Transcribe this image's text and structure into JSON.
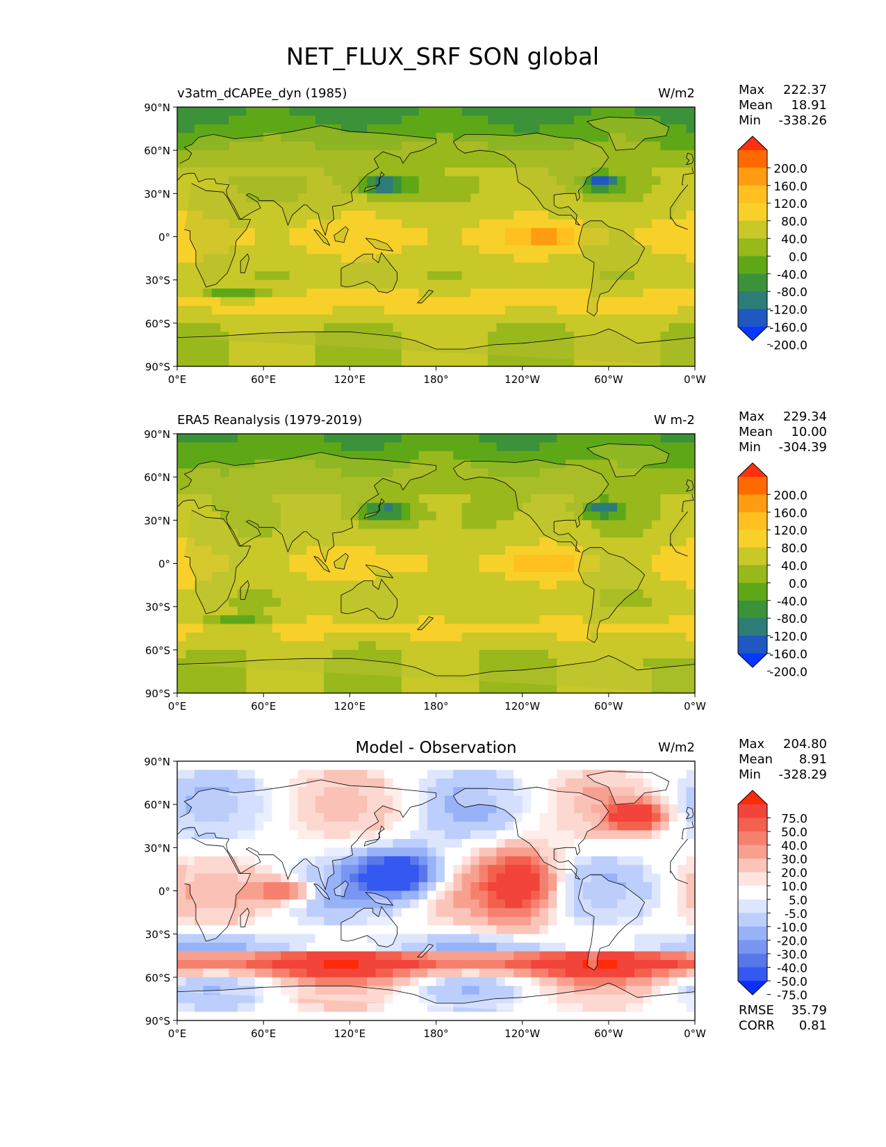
{
  "figure": {
    "title": "NET_FLUX_SRF SON global"
  },
  "axes": {
    "lat_ticks": [
      "90°N",
      "60°N",
      "30°N",
      "0°",
      "30°S",
      "60°S",
      "90°S"
    ],
    "lon_ticks": [
      "0°E",
      "60°E",
      "120°E",
      "180°",
      "120°W",
      "60°W",
      "0°W"
    ]
  },
  "panels": [
    {
      "id": "model",
      "title_left": "v3atm_dCAPEe_dyn (1985)",
      "title_center": "",
      "units": "W/m2",
      "stats": {
        "max_label": "Max",
        "max": "222.37",
        "mean_label": "Mean",
        "mean": "18.91",
        "min_label": "Min",
        "min": "-338.26"
      },
      "colorbar": {
        "labels": [
          "200.0",
          "160.0",
          "120.0",
          "80.0",
          "40.0",
          "0.0",
          "-40.0",
          "-80.0",
          "-120.0",
          "-160.0",
          "-200.0"
        ],
        "colors": [
          "#ff3010",
          "#ff6a00",
          "#ff9c10",
          "#ffc020",
          "#f8d02a",
          "#c8c828",
          "#98b81c",
          "#5ea818",
          "#3c9238",
          "#2e7c78",
          "#1e58c0",
          "#0838ff"
        ],
        "extend": "both"
      },
      "extra": null
    },
    {
      "id": "obs",
      "title_left": "ERA5 Reanalysis (1979-2019)",
      "title_center": "",
      "units": "W m-2",
      "stats": {
        "max_label": "Max",
        "max": "229.34",
        "mean_label": "Mean",
        "mean": "10.00",
        "min_label": "Min",
        "min": "-304.39"
      },
      "colorbar": {
        "labels": [
          "200.0",
          "160.0",
          "120.0",
          "80.0",
          "40.0",
          "0.0",
          "-40.0",
          "-80.0",
          "-120.0",
          "-160.0",
          "-200.0"
        ],
        "colors": [
          "#ff3010",
          "#ff6a00",
          "#ff9c10",
          "#ffc020",
          "#f8d02a",
          "#c8c828",
          "#98b81c",
          "#5ea818",
          "#3c9238",
          "#2e7c78",
          "#1e58c0",
          "#0838ff"
        ],
        "extend": "both"
      },
      "extra": null
    },
    {
      "id": "diff",
      "title_left": "",
      "title_center": "Model - Observation",
      "units": "W/m2",
      "stats": {
        "max_label": "Max",
        "max": "204.80",
        "mean_label": "Mean",
        "mean": "8.91",
        "min_label": "Min",
        "min": "-328.29"
      },
      "colorbar": {
        "labels": [
          "75.0",
          "50.0",
          "40.0",
          "30.0",
          "20.0",
          "10.0",
          "5.0",
          "-5.0",
          "-10.0",
          "-20.0",
          "-30.0",
          "-40.0",
          "-50.0",
          "-75.0"
        ],
        "colors": [
          "#ff2a08",
          "#f2443a",
          "#f4604e",
          "#f6806e",
          "#f8a090",
          "#fac4b8",
          "#fde4de",
          "#ffffff",
          "#dee6fe",
          "#bccefc",
          "#98b2f8",
          "#7896f2",
          "#5878ea",
          "#3458f0",
          "#0a30ff"
        ],
        "extend": "both"
      },
      "extra": {
        "rmse_label": "RMSE",
        "rmse": "35.79",
        "corr_label": "CORR",
        "corr": "0.81"
      }
    }
  ]
}
